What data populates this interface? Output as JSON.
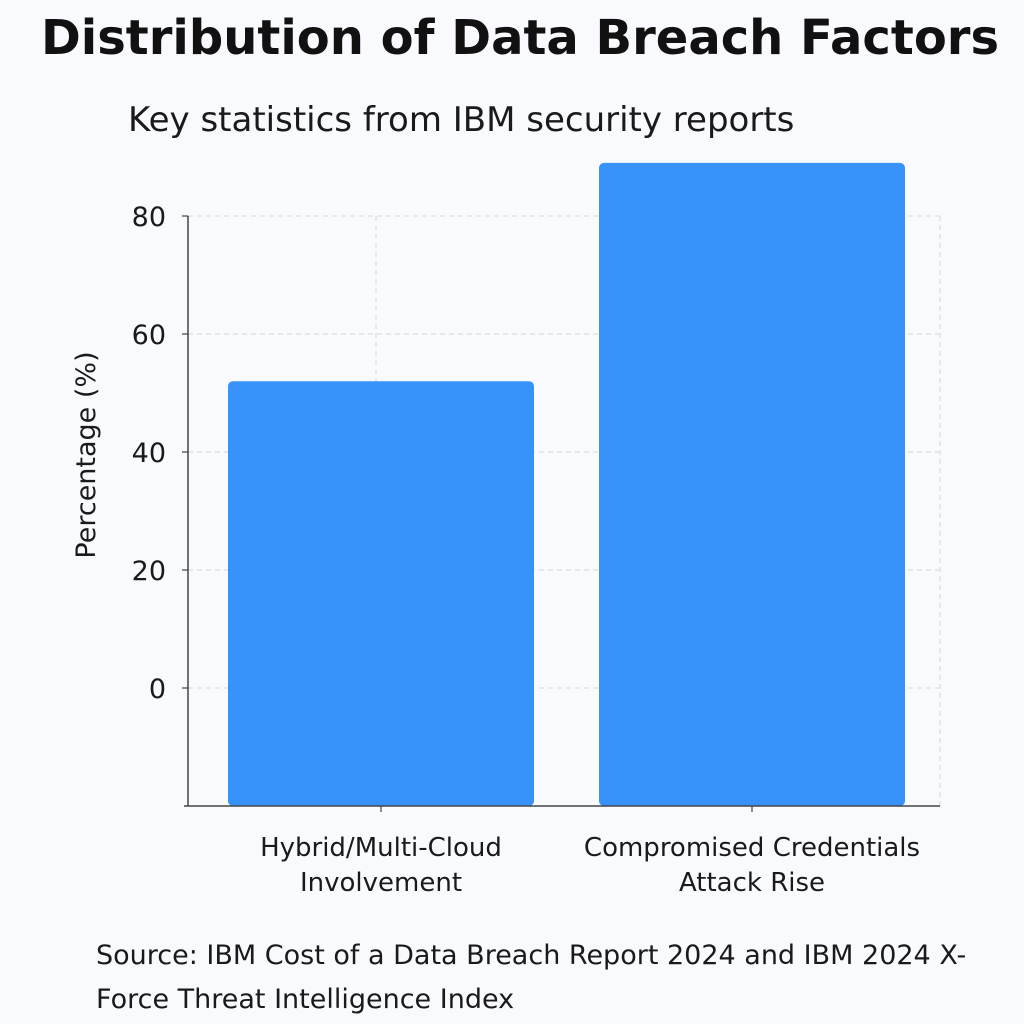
{
  "chart_data": {
    "type": "bar",
    "title": "Distribution of Data Breach Factors",
    "subtitle": "Key statistics from IBM security reports",
    "xlabel": "",
    "ylabel": "Percentage (%)",
    "categories": [
      [
        "Hybrid/Multi-Cloud",
        "Involvement"
      ],
      [
        "Compromised Credentials",
        "Attack Rise"
      ]
    ],
    "values": [
      52,
      89
    ],
    "y_ticks": [
      "80",
      "60",
      "40",
      "20",
      "0"
    ],
    "ylim": [
      -20,
      80
    ],
    "grid": true,
    "bar_color": "#3793fb",
    "source": "Source: IBM Cost of a Data Breach Report 2024 and IBM 2024 X-Force Threat Intelligence Index"
  }
}
